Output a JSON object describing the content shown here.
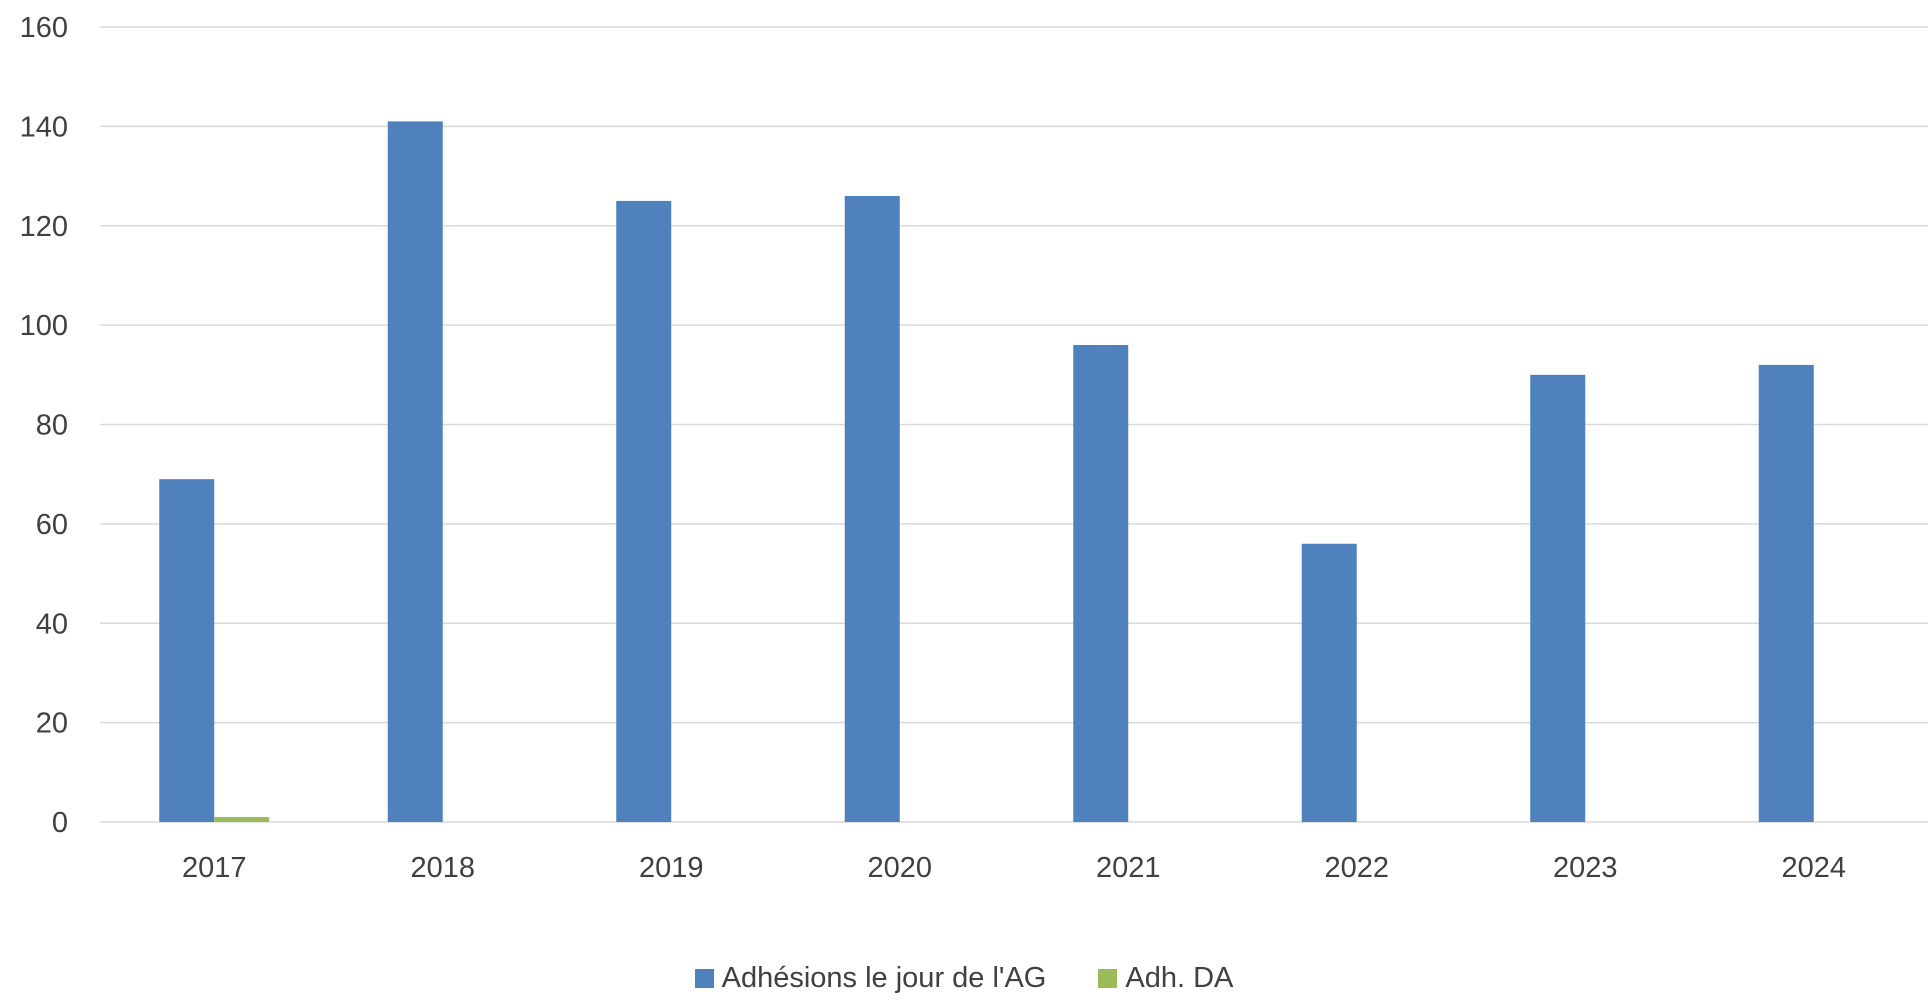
{
  "chart_data": {
    "type": "bar",
    "title": "",
    "xlabel": "",
    "ylabel": "",
    "categories": [
      "2017",
      "2018",
      "2019",
      "2020",
      "2021",
      "2022",
      "2023",
      "2024"
    ],
    "series": [
      {
        "name": "Adhésions le jour de l'AG",
        "color": "#4F81BD",
        "values": [
          69,
          141,
          125,
          126,
          96,
          56,
          90,
          92
        ]
      },
      {
        "name": "Adh. DA",
        "color": "#9BBB59",
        "values": [
          1,
          0,
          0,
          0,
          0,
          0,
          0,
          0
        ]
      }
    ],
    "ylim": [
      0,
      160
    ],
    "yticks": [
      "0",
      "20",
      "40",
      "60",
      "80",
      "100",
      "120",
      "140",
      "160"
    ],
    "grid": true,
    "gridline_color": "#D9D9D9",
    "legend_position": "bottom"
  }
}
